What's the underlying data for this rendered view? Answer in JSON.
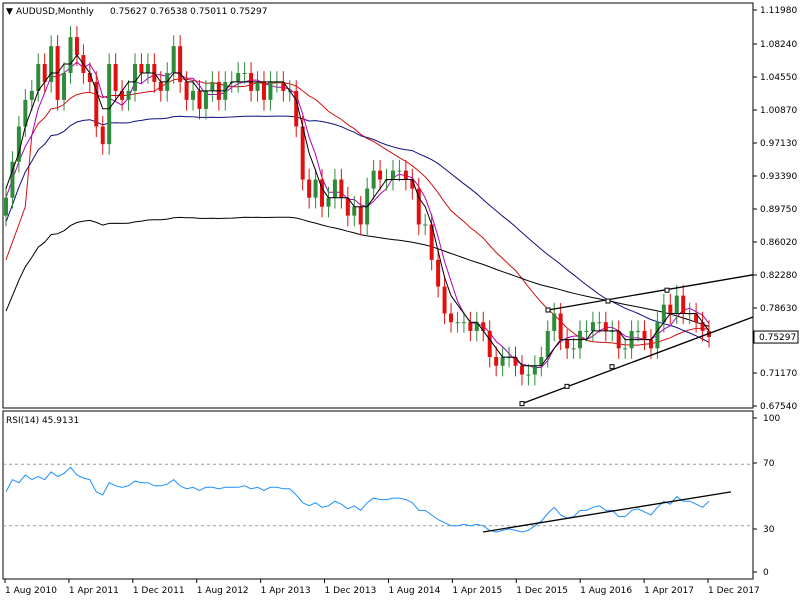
{
  "chart_data": [
    {
      "type": "candlestick",
      "title": "AUDUSD,Monthly",
      "ohlc_label": "0.75627 0.76538 0.75011 0.75297",
      "last_price_label": "0.75297",
      "y_ticks": [
        "1.11980",
        "1.08240",
        "1.04550",
        "1.00870",
        "0.97130",
        "0.93390",
        "0.89750",
        "0.86020",
        "0.82280",
        "0.78630",
        "0.71170",
        "0.67540"
      ],
      "ylim": [
        0.6754,
        1.1198
      ],
      "x_ticks": [
        "1 Aug 2010",
        "1 Apr 2011",
        "1 Dec 2011",
        "1 Aug 2012",
        "1 Apr 2013",
        "1 Dec 2013",
        "1 Aug 2014",
        "1 Apr 2015",
        "1 Dec 2015",
        "1 Aug 2016",
        "1 Apr 2017",
        "1 Dec 2017"
      ],
      "colors": {
        "bull": "#2e8b3a",
        "bear": "#e01010",
        "ma_fast": "#000000",
        "ma_purple": "#b000c0",
        "ma_red": "#d01010",
        "ma_navy": "#101080",
        "ma_long": "#000000"
      },
      "closes": [
        0.91,
        0.95,
        0.99,
        1.02,
        1.03,
        1.06,
        1.04,
        1.08,
        1.02,
        1.05,
        1.09,
        1.07,
        1.05,
        1.04,
        0.99,
        0.97,
        1.06,
        1.03,
        1.02,
        1.03,
        1.06,
        1.05,
        1.06,
        1.04,
        1.03,
        1.05,
        1.08,
        1.04,
        1.02,
        1.03,
        1.01,
        1.03,
        1.04,
        1.02,
        1.04,
        1.04,
        1.05,
        1.05,
        1.03,
        1.04,
        1.02,
        1.04,
        1.04,
        1.03,
        1.03,
        0.99,
        0.93,
        0.91,
        0.93,
        0.9,
        0.91,
        0.93,
        0.91,
        0.89,
        0.9,
        0.88,
        0.92,
        0.94,
        0.93,
        0.93,
        0.94,
        0.94,
        0.93,
        0.92,
        0.88,
        0.88,
        0.84,
        0.81,
        0.78,
        0.77,
        0.77,
        0.77,
        0.76,
        0.77,
        0.76,
        0.73,
        0.72,
        0.73,
        0.73,
        0.72,
        0.71,
        0.71,
        0.72,
        0.73,
        0.76,
        0.78,
        0.75,
        0.74,
        0.74,
        0.76,
        0.76,
        0.77,
        0.77,
        0.76,
        0.76,
        0.74,
        0.74,
        0.76,
        0.76,
        0.75,
        0.74,
        0.77,
        0.79,
        0.78,
        0.8,
        0.78,
        0.78,
        0.77,
        0.76,
        0.753
      ],
      "trendline_label": "",
      "ma_fast": [
        0.92,
        0.94,
        0.96,
        0.99,
        1.01,
        1.03,
        1.04,
        1.05,
        1.05,
        1.06,
        1.06,
        1.07,
        1.06,
        1.05,
        1.03,
        1.01,
        1.01,
        1.02,
        1.03,
        1.04,
        1.04,
        1.05,
        1.05,
        1.05,
        1.04,
        1.04,
        1.05,
        1.05,
        1.04,
        1.04,
        1.03,
        1.03,
        1.03,
        1.03,
        1.03,
        1.04,
        1.04,
        1.04,
        1.04,
        1.04,
        1.04,
        1.04,
        1.04,
        1.04,
        1.03,
        1.02,
        0.99,
        0.96,
        0.94,
        0.92,
        0.91,
        0.91,
        0.91,
        0.91,
        0.9,
        0.9,
        0.9,
        0.91,
        0.92,
        0.93,
        0.93,
        0.93,
        0.93,
        0.93,
        0.91,
        0.9,
        0.88,
        0.85,
        0.82,
        0.8,
        0.79,
        0.78,
        0.77,
        0.77,
        0.76,
        0.75,
        0.74,
        0.73,
        0.73,
        0.73,
        0.72,
        0.72,
        0.72,
        0.72,
        0.73,
        0.74,
        0.75,
        0.75,
        0.75,
        0.75,
        0.75,
        0.76,
        0.76,
        0.76,
        0.76,
        0.76,
        0.75,
        0.75,
        0.75,
        0.75,
        0.75,
        0.76,
        0.77,
        0.78,
        0.78,
        0.78,
        0.78,
        0.78,
        0.77,
        0.76
      ],
      "ma_mid_label": "",
      "rsi": {
        "label": "RSI(14) 45.9131",
        "y_ticks": [
          "100",
          "70",
          "30",
          "0"
        ],
        "levels": [
          70,
          30
        ],
        "values": [
          52,
          60,
          58,
          63,
          60,
          62,
          60,
          65,
          62,
          64,
          68,
          63,
          61,
          60,
          52,
          50,
          58,
          56,
          55,
          56,
          59,
          58,
          58,
          56,
          56,
          57,
          60,
          56,
          54,
          55,
          53,
          55,
          55,
          54,
          55,
          55,
          55,
          56,
          54,
          55,
          53,
          55,
          55,
          54,
          54,
          50,
          45,
          43,
          45,
          42,
          43,
          46,
          44,
          41,
          43,
          40,
          45,
          48,
          47,
          47,
          48,
          48,
          47,
          45,
          40,
          40,
          37,
          34,
          32,
          30,
          30,
          31,
          30,
          31,
          30,
          27,
          26,
          27,
          28,
          27,
          26,
          27,
          30,
          33,
          38,
          42,
          37,
          35,
          36,
          40,
          40,
          42,
          43,
          40,
          40,
          36,
          36,
          40,
          41,
          39,
          37,
          42,
          46,
          44,
          49,
          46,
          46,
          44,
          42,
          45.9
        ]
      }
    }
  ]
}
